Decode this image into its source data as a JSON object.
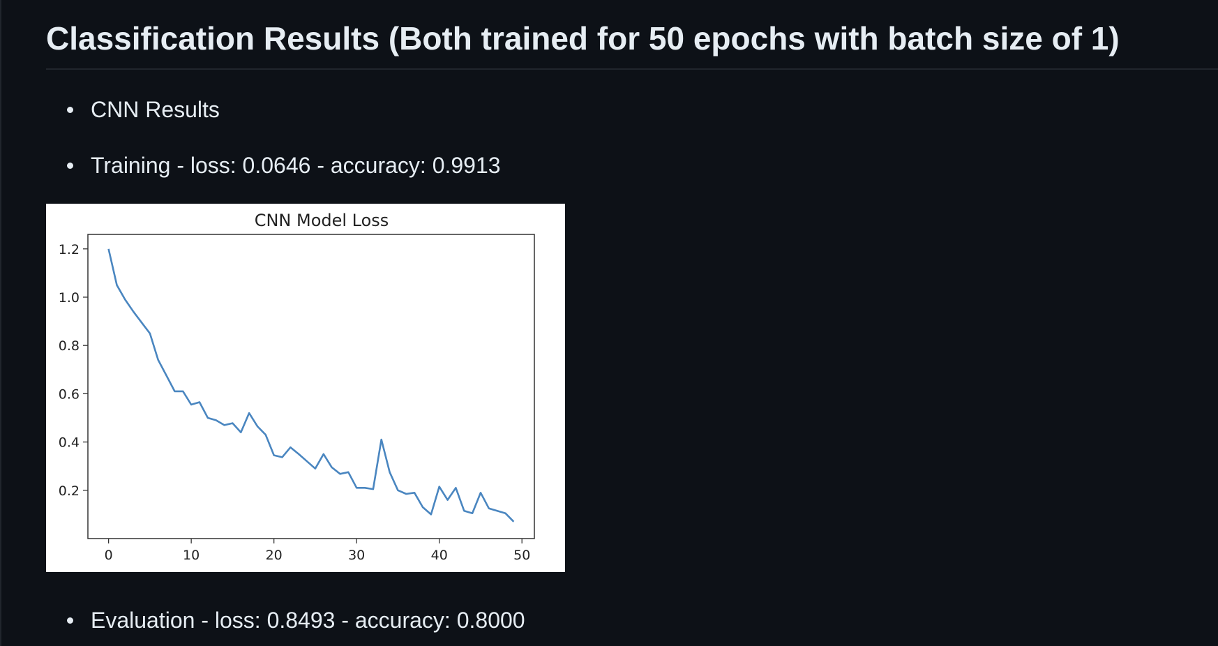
{
  "heading": "Classification Results (Both trained for 50 epochs with batch size of 1)",
  "bullets": {
    "cnn_results": "CNN Results",
    "training": "Training - loss: 0.0646 - accuracy: 0.9913",
    "evaluation": "Evaluation - loss: 0.8493 - accuracy: 0.8000"
  },
  "colors": {
    "background": "#0d1117",
    "text": "#e6edf3",
    "rule": "#21262d",
    "line": "#4a86c0"
  },
  "chart_data": {
    "type": "line",
    "title": "CNN Model Loss",
    "xlabel": "",
    "ylabel": "",
    "xlim": [
      -2.5,
      51.5
    ],
    "ylim": [
      0.0,
      1.26
    ],
    "xticks": [
      0,
      10,
      20,
      30,
      40,
      50
    ],
    "yticks": [
      0.2,
      0.4,
      0.6,
      0.8,
      1.0,
      1.2
    ],
    "xtick_labels": [
      "0",
      "10",
      "20",
      "30",
      "40",
      "50"
    ],
    "ytick_labels": [
      "0.2",
      "0.4",
      "0.6",
      "0.8",
      "1.0",
      "1.2"
    ],
    "grid": false,
    "series": [
      {
        "x": [
          0,
          1,
          2,
          3,
          4,
          5,
          6,
          7,
          8,
          9,
          10,
          11,
          12,
          13,
          14,
          15,
          16,
          17,
          18,
          19,
          20,
          21,
          22,
          23,
          24,
          25,
          26,
          27,
          28,
          29,
          30,
          31,
          32,
          33,
          34,
          35,
          36,
          37,
          38,
          39,
          40,
          41,
          42,
          43,
          44,
          45,
          46,
          47,
          48,
          49
        ],
        "values": [
          1.2,
          1.05,
          0.99,
          0.94,
          0.895,
          0.85,
          0.74,
          0.675,
          0.61,
          0.61,
          0.555,
          0.565,
          0.5,
          0.49,
          0.47,
          0.478,
          0.44,
          0.52,
          0.465,
          0.43,
          0.345,
          0.337,
          0.378,
          0.35,
          0.32,
          0.29,
          0.35,
          0.295,
          0.268,
          0.275,
          0.21,
          0.21,
          0.205,
          0.41,
          0.275,
          0.2,
          0.185,
          0.19,
          0.13,
          0.1,
          0.215,
          0.16,
          0.21,
          0.115,
          0.105,
          0.19,
          0.125,
          0.115,
          0.105,
          0.07
        ]
      }
    ]
  }
}
